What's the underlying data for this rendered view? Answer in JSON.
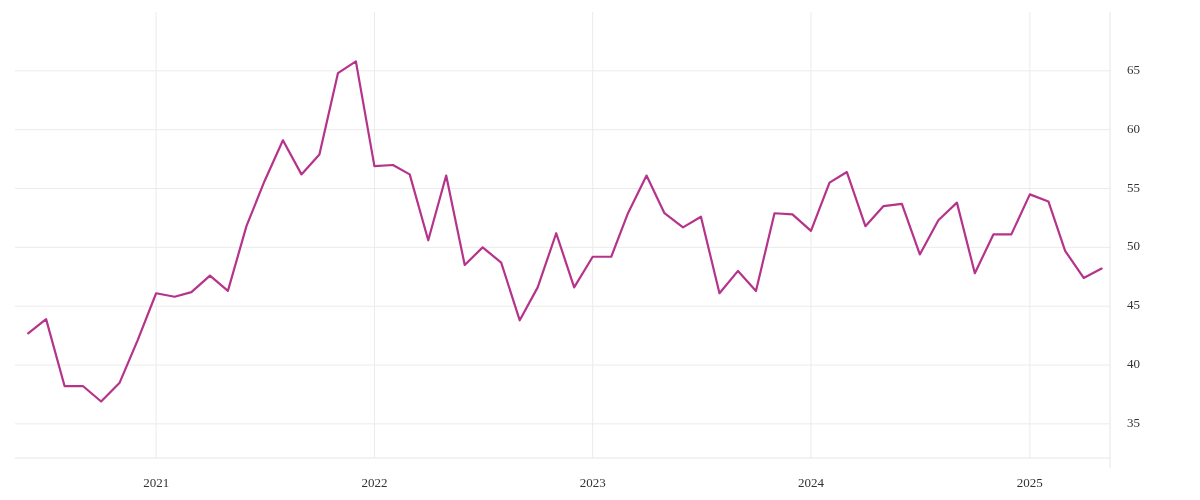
{
  "chart_data": {
    "type": "line",
    "x": [
      "2020-06",
      "2020-07",
      "2020-08",
      "2020-09",
      "2020-10",
      "2020-11",
      "2020-12",
      "2021-01",
      "2021-02",
      "2021-03",
      "2021-04",
      "2021-05",
      "2021-06",
      "2021-07",
      "2021-08",
      "2021-09",
      "2021-10",
      "2021-11",
      "2021-12",
      "2022-01",
      "2022-02",
      "2022-03",
      "2022-04",
      "2022-05",
      "2022-06",
      "2022-07",
      "2022-08",
      "2022-09",
      "2022-10",
      "2022-11",
      "2022-12",
      "2023-01",
      "2023-02",
      "2023-03",
      "2023-04",
      "2023-05",
      "2023-06",
      "2023-07",
      "2023-08",
      "2023-09",
      "2023-10",
      "2023-11",
      "2023-12",
      "2024-01",
      "2024-02",
      "2024-03",
      "2024-04",
      "2024-05",
      "2024-06",
      "2024-07",
      "2024-08",
      "2024-09",
      "2024-10",
      "2024-11",
      "2024-12",
      "2025-01",
      "2025-02",
      "2025-03",
      "2025-04",
      "2025-05"
    ],
    "series": [
      {
        "color": "#b5338a",
        "values": [
          42.7,
          43.9,
          38.2,
          38.2,
          36.9,
          38.5,
          42.1,
          46.1,
          45.8,
          46.2,
          47.6,
          46.3,
          51.8,
          55.6,
          59.1,
          56.2,
          57.9,
          64.8,
          65.8,
          56.9,
          57.0,
          56.2,
          50.6,
          56.1,
          48.5,
          50.0,
          48.7,
          43.8,
          46.6,
          51.2,
          46.6,
          49.2,
          49.2,
          52.9,
          56.1,
          52.9,
          51.7,
          52.6,
          46.1,
          48.0,
          46.3,
          52.9,
          52.8,
          51.4,
          55.5,
          56.4,
          51.8,
          53.5,
          53.7,
          49.4,
          52.3,
          53.8,
          47.8,
          51.1,
          51.1,
          54.5,
          53.9,
          49.7,
          47.4,
          48.2
        ]
      }
    ],
    "xlim": [
      "2020-05-10",
      "2025-05-15"
    ],
    "xticks": [
      {
        "value": "2021-01",
        "label": "2021"
      },
      {
        "value": "2022-01",
        "label": "2022"
      },
      {
        "value": "2023-01",
        "label": "2023"
      },
      {
        "value": "2024-01",
        "label": "2024"
      },
      {
        "value": "2025-01",
        "label": "2025"
      }
    ],
    "ylim": [
      32.1,
      70
    ],
    "yticks": [
      35,
      40,
      45,
      50,
      55,
      60,
      65
    ],
    "grid": true,
    "line_style": "solid"
  }
}
